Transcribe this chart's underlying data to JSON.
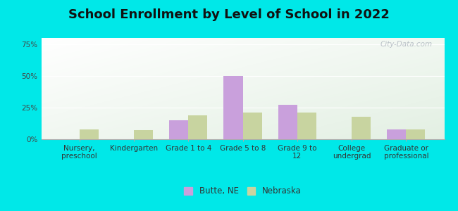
{
  "title": "School Enrollment by Level of School in 2022",
  "categories": [
    "Nursery,\npreschool",
    "Kindergarten",
    "Grade 1 to 4",
    "Grade 5 to 8",
    "Grade 9 to\n12",
    "College\nundergrad",
    "Graduate or\nprofessional"
  ],
  "butte_values": [
    0,
    0,
    15,
    50,
    27,
    0,
    8
  ],
  "nebraska_values": [
    8,
    7,
    19,
    21,
    21,
    18,
    8
  ],
  "butte_color": "#c9a0dc",
  "nebraska_color": "#c8d4a0",
  "ylim": [
    0,
    80
  ],
  "yticks": [
    0,
    25,
    50,
    75
  ],
  "ytick_labels": [
    "0%",
    "25%",
    "50%",
    "75%"
  ],
  "background_color": "#00e8e8",
  "title_fontsize": 13,
  "tick_fontsize": 7.5,
  "legend_labels": [
    "Butte, NE",
    "Nebraska"
  ],
  "bar_width": 0.35,
  "watermark": "City-Data.com",
  "grad_bottom_left": "#c8ddb8",
  "grad_top_right": "#f0f8f0"
}
